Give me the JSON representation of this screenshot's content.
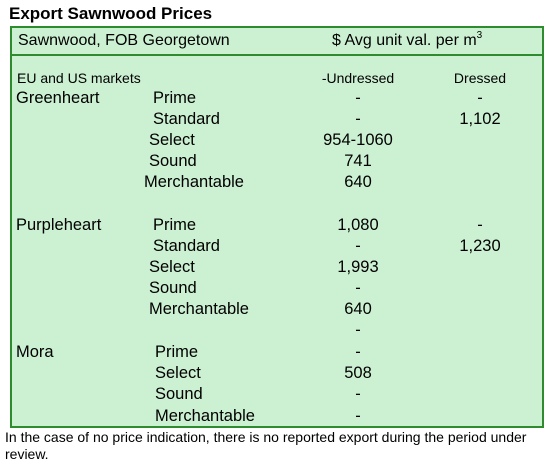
{
  "title": "Export Sawnwood Prices",
  "header": {
    "left": "Sawnwood, FOB Georgetown",
    "right": "$ Avg unit val. per m",
    "right_sup": "3"
  },
  "subheader": {
    "market": "EU and US markets",
    "col1": "-Undressed",
    "col2": "Dressed"
  },
  "rows": [
    {
      "species": "Greenheart",
      "grade": "Prime",
      "undressed": "-",
      "dressed": "-"
    },
    {
      "species": "",
      "grade": "Standard",
      "undressed": "-",
      "dressed": "1,102"
    },
    {
      "species": "",
      "grade": "Select",
      "undressed": "954-1060",
      "dressed": ""
    },
    {
      "species": "",
      "grade": "Sound",
      "undressed": "741",
      "dressed": ""
    },
    {
      "species": "",
      "grade": "Merchantable",
      "undressed": "640",
      "dressed": ""
    },
    {
      "species": "Purpleheart",
      "grade": "Prime",
      "undressed": "1,080",
      "dressed": "-"
    },
    {
      "species": "",
      "grade": "Standard",
      "undressed": "-",
      "dressed": "1,230"
    },
    {
      "species": "",
      "grade": "Select",
      "undressed": "1,993",
      "dressed": ""
    },
    {
      "species": "",
      "grade": "Sound",
      "undressed": "-",
      "dressed": ""
    },
    {
      "species": "",
      "grade": "Merchantable",
      "undressed": "640",
      "dressed": ""
    },
    {
      "species": "",
      "grade": "",
      "undressed": "-",
      "dressed": ""
    },
    {
      "species": "Mora",
      "grade": "Prime",
      "undressed": "-",
      "dressed": ""
    },
    {
      "species": "",
      "grade": "Select",
      "undressed": "508",
      "dressed": ""
    },
    {
      "species": "",
      "grade": "Sound",
      "undressed": "-",
      "dressed": ""
    },
    {
      "species": "",
      "grade": "Merchantable",
      "undressed": "-",
      "dressed": ""
    }
  ],
  "footnote": "In the case of no price indication, there is no reported export during the period under review."
}
